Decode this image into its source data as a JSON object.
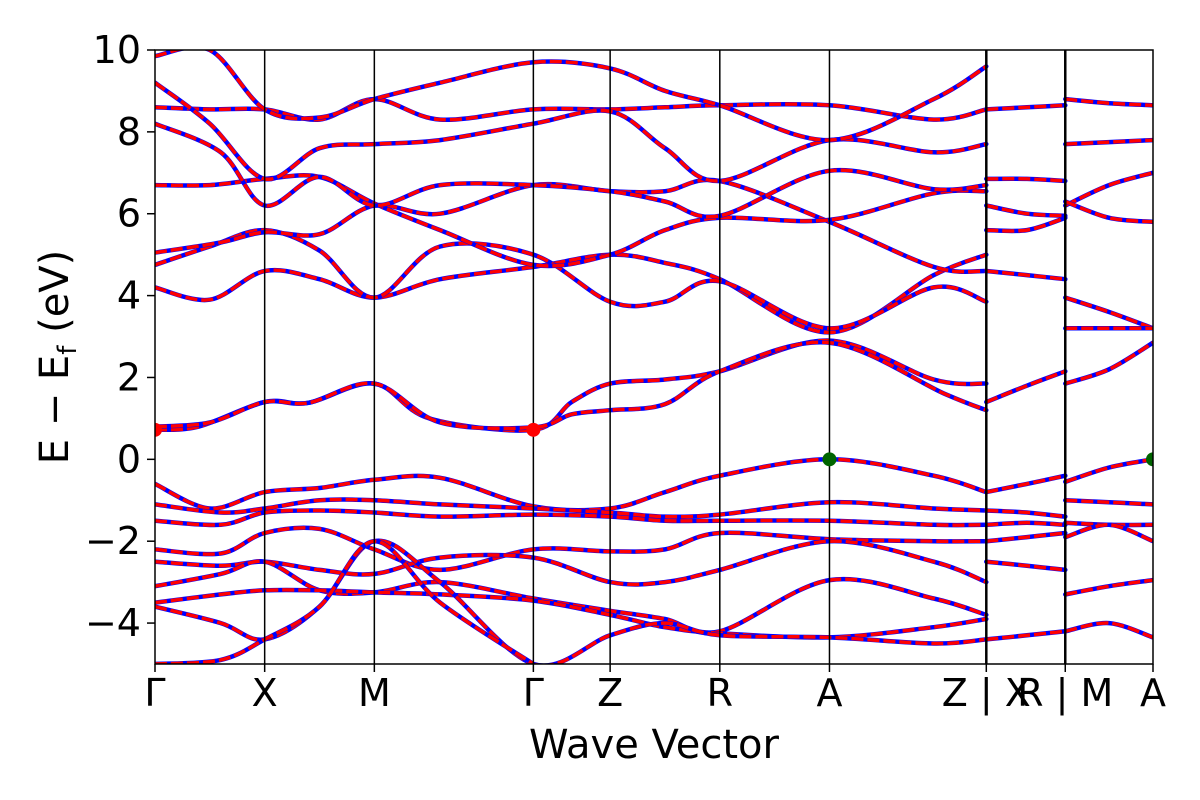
{
  "chart_data": {
    "type": "line",
    "xlabel": "Wave Vector",
    "ylabel_main": "E − E",
    "ylabel_sub": "f",
    "ylabel_unit": " (eV)",
    "ylim": [
      -5,
      10
    ],
    "y_ticks": [
      {
        "value": 10,
        "label": "10"
      },
      {
        "value": 8,
        "label": "8"
      },
      {
        "value": 6,
        "label": "6"
      },
      {
        "value": 4,
        "label": "4"
      },
      {
        "value": 2,
        "label": "2"
      },
      {
        "value": 0,
        "label": "0"
      },
      {
        "value": -2,
        "label": "−2"
      },
      {
        "value": -4,
        "label": "−4"
      }
    ],
    "xlim": [
      0,
      9.1
    ],
    "kpoints": [
      {
        "x": 0,
        "label": "Γ"
      },
      {
        "x": 1.0,
        "label": "X"
      },
      {
        "x": 2.0,
        "label": "M"
      },
      {
        "x": 3.45,
        "label": "Γ"
      },
      {
        "x": 4.15,
        "label": "Z"
      },
      {
        "x": 5.15,
        "label": "R"
      },
      {
        "x": 6.15,
        "label": "A"
      },
      {
        "x": 7.58,
        "label": "Z | X"
      },
      {
        "x": 8.3,
        "label": "R | M"
      },
      {
        "x": 9.1,
        "label": "A"
      }
    ],
    "segment_breaks": [
      7.58,
      8.3
    ],
    "series_colors": {
      "primary": "#ff0000",
      "overlay": "#0000ff",
      "marker": "#006400"
    },
    "markers": [
      {
        "name": "cbm",
        "points": [
          [
            0,
            0.72
          ],
          [
            3.45,
            0.72
          ]
        ],
        "color": "#ff0000"
      },
      {
        "name": "vbm",
        "points": [
          [
            6.15,
            0.0
          ],
          [
            9.1,
            0.0
          ]
        ],
        "color": "#006400"
      }
    ],
    "bands": [
      [
        [
          0,
          0.72
        ],
        [
          0.4,
          0.8
        ],
        [
          1.0,
          1.4
        ],
        [
          1.4,
          1.38
        ],
        [
          2.0,
          1.85
        ],
        [
          2.5,
          1.0
        ],
        [
          3.45,
          0.72
        ],
        [
          3.8,
          1.4
        ],
        [
          4.15,
          1.85
        ],
        [
          4.65,
          1.95
        ],
        [
          5.15,
          2.15
        ],
        [
          6.15,
          2.9
        ],
        [
          7.1,
          1.95
        ],
        [
          7.58,
          1.85
        ]
      ],
      [
        [
          0,
          0.8
        ],
        [
          0.5,
          0.9
        ],
        [
          1.0,
          1.4
        ],
        [
          1.4,
          1.38
        ],
        [
          2.0,
          1.85
        ],
        [
          2.6,
          0.9
        ],
        [
          3.45,
          0.78
        ],
        [
          3.8,
          1.1
        ],
        [
          4.15,
          1.2
        ],
        [
          4.65,
          1.35
        ],
        [
          5.15,
          2.15
        ],
        [
          6.15,
          2.85
        ],
        [
          7.2,
          1.6
        ],
        [
          7.58,
          1.2
        ]
      ],
      [
        [
          0,
          4.2
        ],
        [
          0.5,
          3.9
        ],
        [
          1.0,
          4.6
        ],
        [
          1.5,
          4.4
        ],
        [
          2.0,
          3.95
        ],
        [
          2.6,
          4.4
        ],
        [
          3.45,
          4.7
        ],
        [
          4.15,
          5.0
        ],
        [
          4.65,
          4.8
        ],
        [
          5.15,
          4.4
        ],
        [
          6.15,
          3.1
        ],
        [
          7.1,
          4.5
        ],
        [
          7.58,
          5.0
        ]
      ],
      [
        [
          0,
          4.75
        ],
        [
          0.5,
          5.2
        ],
        [
          1.0,
          5.6
        ],
        [
          1.5,
          5.1
        ],
        [
          2.0,
          3.95
        ],
        [
          2.6,
          5.2
        ],
        [
          3.45,
          5.0
        ],
        [
          4.15,
          3.85
        ],
        [
          4.65,
          3.85
        ],
        [
          5.15,
          4.35
        ],
        [
          6.15,
          3.2
        ],
        [
          7.1,
          4.2
        ],
        [
          7.58,
          3.85
        ]
      ],
      [
        [
          0,
          5.05
        ],
        [
          0.6,
          5.3
        ],
        [
          1.0,
          5.55
        ],
        [
          1.5,
          5.5
        ],
        [
          2.0,
          6.2
        ],
        [
          2.6,
          6.0
        ],
        [
          3.45,
          6.7
        ],
        [
          4.15,
          6.55
        ],
        [
          4.65,
          6.55
        ],
        [
          5.15,
          6.8
        ],
        [
          6.15,
          5.8
        ],
        [
          7.1,
          4.7
        ],
        [
          7.58,
          4.6
        ]
      ],
      [
        [
          0,
          6.7
        ],
        [
          0.5,
          6.7
        ],
        [
          1.0,
          6.85
        ],
        [
          1.5,
          6.9
        ],
        [
          2.0,
          6.25
        ],
        [
          2.6,
          5.6
        ],
        [
          3.45,
          4.75
        ],
        [
          4.15,
          5.0
        ],
        [
          4.65,
          5.6
        ],
        [
          5.15,
          5.9
        ],
        [
          6.15,
          5.85
        ],
        [
          7.1,
          6.5
        ],
        [
          7.58,
          6.55
        ]
      ],
      [
        [
          0,
          8.2
        ],
        [
          0.6,
          7.5
        ],
        [
          1.0,
          6.2
        ],
        [
          1.5,
          6.9
        ],
        [
          2.0,
          6.2
        ],
        [
          2.6,
          6.7
        ],
        [
          3.45,
          6.7
        ],
        [
          4.15,
          6.55
        ],
        [
          4.65,
          6.3
        ],
        [
          5.15,
          5.95
        ],
        [
          6.15,
          7.05
        ],
        [
          7.1,
          6.6
        ],
        [
          7.58,
          6.7
        ]
      ],
      [
        [
          0,
          8.6
        ],
        [
          0.5,
          8.55
        ],
        [
          1.0,
          8.55
        ],
        [
          1.5,
          8.3
        ],
        [
          2.0,
          8.8
        ],
        [
          2.6,
          8.3
        ],
        [
          3.45,
          8.55
        ],
        [
          4.15,
          8.55
        ],
        [
          4.65,
          8.6
        ],
        [
          5.15,
          8.65
        ],
        [
          6.15,
          8.65
        ],
        [
          7.1,
          8.3
        ],
        [
          7.58,
          8.55
        ]
      ],
      [
        [
          0,
          9.2
        ],
        [
          0.5,
          8.2
        ],
        [
          1.0,
          6.85
        ],
        [
          1.5,
          7.6
        ],
        [
          2.0,
          7.7
        ],
        [
          2.6,
          7.8
        ],
        [
          3.45,
          8.2
        ],
        [
          4.15,
          8.5
        ],
        [
          4.65,
          7.6
        ],
        [
          5.15,
          6.8
        ],
        [
          6.15,
          7.8
        ],
        [
          7.1,
          7.5
        ],
        [
          7.58,
          7.7
        ]
      ],
      [
        [
          0,
          9.85
        ],
        [
          0.5,
          10.0
        ],
        [
          1.0,
          8.55
        ],
        [
          1.5,
          8.35
        ],
        [
          2.0,
          8.8
        ],
        [
          2.6,
          9.2
        ],
        [
          3.45,
          9.7
        ],
        [
          4.15,
          9.55
        ],
        [
          4.65,
          9.0
        ],
        [
          5.15,
          8.65
        ],
        [
          6.15,
          7.8
        ],
        [
          7.1,
          8.8
        ],
        [
          7.58,
          9.6
        ]
      ],
      [
        [
          0,
          -0.6
        ],
        [
          0.5,
          -1.2
        ],
        [
          1.0,
          -0.8
        ],
        [
          1.5,
          -0.7
        ],
        [
          2.0,
          -0.5
        ],
        [
          2.6,
          -0.45
        ],
        [
          3.45,
          -1.15
        ],
        [
          4.15,
          -1.2
        ],
        [
          4.65,
          -0.8
        ],
        [
          5.15,
          -0.4
        ],
        [
          6.15,
          0.0
        ],
        [
          7.1,
          -0.4
        ],
        [
          7.58,
          -0.8
        ]
      ],
      [
        [
          0,
          -1.1
        ],
        [
          0.6,
          -1.3
        ],
        [
          1.0,
          -1.2
        ],
        [
          1.5,
          -1.0
        ],
        [
          2.0,
          -1.0
        ],
        [
          2.6,
          -1.1
        ],
        [
          3.45,
          -1.2
        ],
        [
          4.15,
          -1.3
        ],
        [
          4.65,
          -1.4
        ],
        [
          5.15,
          -1.35
        ],
        [
          6.15,
          -1.05
        ],
        [
          7.1,
          -1.2
        ],
        [
          7.58,
          -1.25
        ]
      ],
      [
        [
          0,
          -1.5
        ],
        [
          0.6,
          -1.6
        ],
        [
          1.0,
          -1.3
        ],
        [
          1.5,
          -1.25
        ],
        [
          2.0,
          -1.3
        ],
        [
          2.6,
          -1.4
        ],
        [
          3.45,
          -1.35
        ],
        [
          4.15,
          -1.4
        ],
        [
          4.65,
          -1.5
        ],
        [
          5.15,
          -1.5
        ],
        [
          6.15,
          -1.5
        ],
        [
          7.1,
          -1.6
        ],
        [
          7.58,
          -1.6
        ]
      ],
      [
        [
          0,
          -2.2
        ],
        [
          0.6,
          -2.3
        ],
        [
          1.0,
          -1.8
        ],
        [
          1.5,
          -1.7
        ],
        [
          2.0,
          -2.2
        ],
        [
          2.6,
          -2.7
        ],
        [
          3.45,
          -2.2
        ],
        [
          4.15,
          -2.25
        ],
        [
          4.65,
          -2.2
        ],
        [
          5.15,
          -1.8
        ],
        [
          6.15,
          -1.95
        ],
        [
          7.1,
          -2.0
        ],
        [
          7.58,
          -2.0
        ]
      ],
      [
        [
          0,
          -2.5
        ],
        [
          0.6,
          -2.6
        ],
        [
          1.0,
          -2.5
        ],
        [
          1.5,
          -2.7
        ],
        [
          2.0,
          -2.8
        ],
        [
          2.6,
          -2.4
        ],
        [
          3.45,
          -2.4
        ],
        [
          4.15,
          -3.0
        ],
        [
          4.65,
          -3.0
        ],
        [
          5.15,
          -2.7
        ],
        [
          6.15,
          -2.0
        ],
        [
          7.1,
          -2.5
        ],
        [
          7.58,
          -3.0
        ]
      ],
      [
        [
          0,
          -3.1
        ],
        [
          0.6,
          -2.8
        ],
        [
          1.0,
          -2.5
        ],
        [
          1.5,
          -3.2
        ],
        [
          2.0,
          -3.25
        ],
        [
          2.6,
          -3.0
        ],
        [
          3.45,
          -3.4
        ],
        [
          4.15,
          -3.7
        ],
        [
          4.65,
          -3.9
        ],
        [
          5.15,
          -4.2
        ],
        [
          6.15,
          -2.95
        ],
        [
          7.1,
          -3.4
        ],
        [
          7.58,
          -3.8
        ]
      ],
      [
        [
          0,
          -3.5
        ],
        [
          0.6,
          -3.3
        ],
        [
          1.0,
          -3.2
        ],
        [
          1.5,
          -3.2
        ],
        [
          2.0,
          -3.25
        ],
        [
          2.6,
          -3.3
        ],
        [
          3.45,
          -3.45
        ],
        [
          4.15,
          -3.8
        ],
        [
          4.65,
          -4.1
        ],
        [
          5.15,
          -4.25
        ],
        [
          6.15,
          -4.35
        ],
        [
          7.1,
          -4.1
        ],
        [
          7.58,
          -3.9
        ]
      ],
      [
        [
          0,
          -3.6
        ],
        [
          0.6,
          -4.0
        ],
        [
          1.0,
          -4.4
        ],
        [
          1.5,
          -3.6
        ],
        [
          2.0,
          -2.0
        ],
        [
          2.6,
          -3.0
        ],
        [
          3.45,
          -5.0
        ],
        [
          4.15,
          -4.3
        ],
        [
          4.65,
          -4.0
        ],
        [
          5.15,
          -4.3
        ],
        [
          6.15,
          -4.35
        ],
        [
          7.1,
          -4.5
        ],
        [
          7.58,
          -4.4
        ]
      ],
      [
        [
          0,
          -5.0
        ],
        [
          0.6,
          -4.9
        ],
        [
          1.0,
          -4.4
        ],
        [
          1.5,
          -3.6
        ],
        [
          2.0,
          -2.0
        ],
        [
          2.6,
          -3.5
        ],
        [
          3.45,
          -5.0
        ]
      ],
      [
        [
          7.58,
          1.4
        ],
        [
          7.95,
          1.8
        ],
        [
          8.3,
          2.15
        ]
      ],
      [
        [
          7.58,
          4.6
        ],
        [
          7.95,
          4.5
        ],
        [
          8.3,
          4.4
        ]
      ],
      [
        [
          7.58,
          5.6
        ],
        [
          7.95,
          5.6
        ],
        [
          8.3,
          5.9
        ]
      ],
      [
        [
          7.58,
          6.2
        ],
        [
          7.95,
          6.0
        ],
        [
          8.3,
          5.95
        ]
      ],
      [
        [
          7.58,
          6.85
        ],
        [
          7.95,
          6.85
        ],
        [
          8.3,
          6.8
        ]
      ],
      [
        [
          7.58,
          8.55
        ],
        [
          7.95,
          8.6
        ],
        [
          8.3,
          8.65
        ]
      ],
      [
        [
          7.58,
          -0.8
        ],
        [
          7.95,
          -0.6
        ],
        [
          8.3,
          -0.4
        ]
      ],
      [
        [
          7.58,
          -1.25
        ],
        [
          7.95,
          -1.3
        ],
        [
          8.3,
          -1.4
        ]
      ],
      [
        [
          7.58,
          -1.6
        ],
        [
          7.95,
          -1.55
        ],
        [
          8.3,
          -1.6
        ]
      ],
      [
        [
          7.58,
          -2.0
        ],
        [
          7.95,
          -1.9
        ],
        [
          8.3,
          -1.8
        ]
      ],
      [
        [
          7.58,
          -2.5
        ],
        [
          7.95,
          -2.6
        ],
        [
          8.3,
          -2.7
        ]
      ],
      [
        [
          7.58,
          -4.4
        ],
        [
          7.95,
          -4.3
        ],
        [
          8.3,
          -4.2
        ]
      ],
      [
        [
          8.3,
          3.95
        ],
        [
          8.7,
          3.6
        ],
        [
          9.1,
          3.2
        ]
      ],
      [
        [
          8.3,
          1.85
        ],
        [
          8.7,
          2.2
        ],
        [
          9.1,
          2.85
        ]
      ],
      [
        [
          8.3,
          3.2
        ],
        [
          8.7,
          3.2
        ],
        [
          9.1,
          3.2
        ]
      ],
      [
        [
          8.3,
          6.2
        ],
        [
          8.7,
          6.7
        ],
        [
          9.1,
          7.0
        ]
      ],
      [
        [
          8.3,
          6.3
        ],
        [
          8.7,
          5.9
        ],
        [
          9.1,
          5.8
        ]
      ],
      [
        [
          8.3,
          7.7
        ],
        [
          8.7,
          7.75
        ],
        [
          9.1,
          7.8
        ]
      ],
      [
        [
          8.3,
          8.8
        ],
        [
          8.7,
          8.7
        ],
        [
          9.1,
          8.65
        ]
      ],
      [
        [
          8.3,
          -0.55
        ],
        [
          8.7,
          -0.2
        ],
        [
          9.1,
          0.0
        ]
      ],
      [
        [
          8.3,
          -1.0
        ],
        [
          8.7,
          -1.05
        ],
        [
          9.1,
          -1.1
        ]
      ],
      [
        [
          8.3,
          -1.55
        ],
        [
          8.7,
          -1.6
        ],
        [
          9.1,
          -1.6
        ]
      ],
      [
        [
          8.3,
          -1.9
        ],
        [
          8.7,
          -1.6
        ],
        [
          9.1,
          -2.0
        ]
      ],
      [
        [
          8.3,
          -3.3
        ],
        [
          8.7,
          -3.1
        ],
        [
          9.1,
          -2.95
        ]
      ],
      [
        [
          8.3,
          -4.2
        ],
        [
          8.7,
          -4.0
        ],
        [
          9.1,
          -4.35
        ]
      ]
    ]
  }
}
